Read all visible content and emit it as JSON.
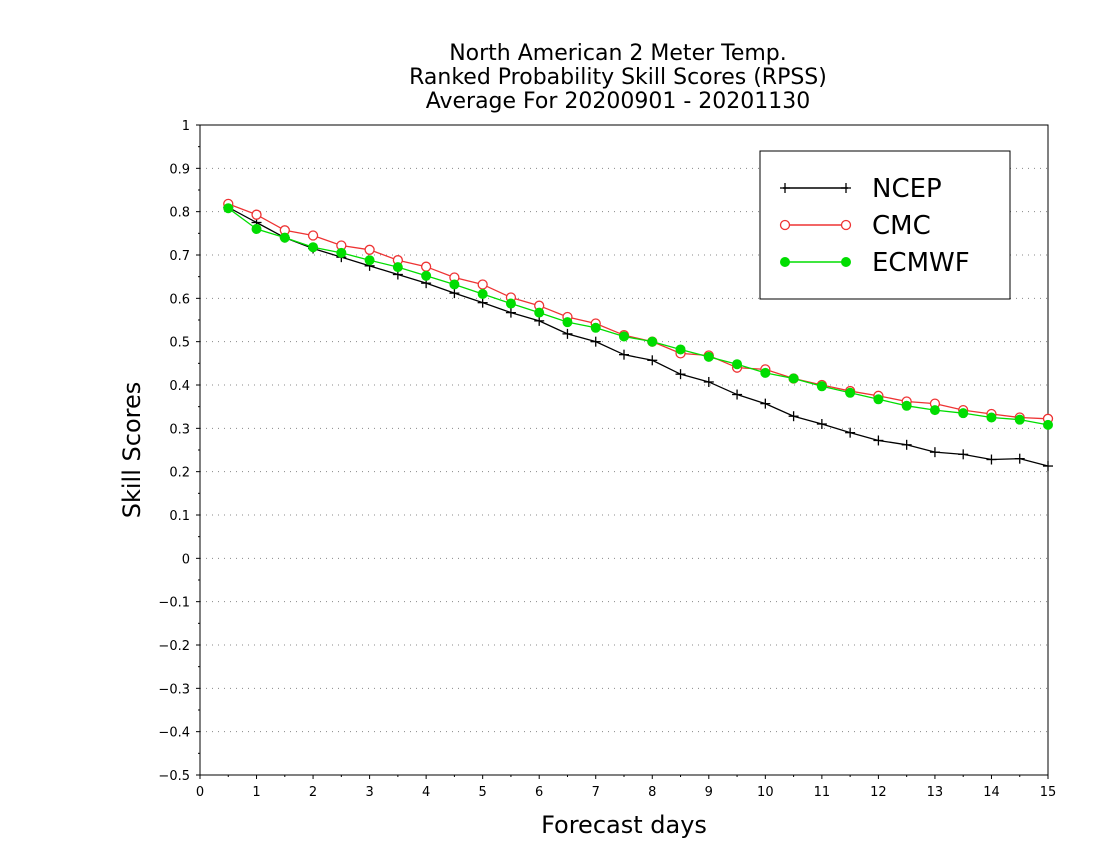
{
  "chart_data": {
    "type": "line",
    "title_lines": [
      "North American 2 Meter Temp.",
      "Ranked Probability Skill Scores (RPSS)",
      "Average For 20200901 - 20201130"
    ],
    "xlabel": "Forecast days",
    "ylabel": "Skill Scores",
    "xlim": [
      0,
      15
    ],
    "ylim": [
      -0.5,
      1
    ],
    "xticks": [
      0,
      1,
      2,
      3,
      4,
      5,
      6,
      7,
      8,
      9,
      10,
      11,
      12,
      13,
      14,
      15
    ],
    "yticks": [
      -0.5,
      -0.4,
      -0.3,
      -0.2,
      -0.1,
      0,
      0.1,
      0.2,
      0.3,
      0.4,
      0.5,
      0.6,
      0.7,
      0.8,
      0.9,
      1
    ],
    "ytick_labels": [
      "−0.5",
      "−0.4",
      "−0.3",
      "−0.2",
      "−0.1",
      "0",
      "0.1",
      "0.2",
      "0.3",
      "0.4",
      "0.5",
      "0.6",
      "0.7",
      "0.8",
      "0.9",
      "1"
    ],
    "grid": "horizontal dotted",
    "legend_position": "top-right",
    "x": [
      0.5,
      1,
      1.5,
      2,
      2.5,
      3,
      3.5,
      4,
      4.5,
      5,
      5.5,
      6,
      6.5,
      7,
      7.5,
      8,
      8.5,
      9,
      9.5,
      10,
      10.5,
      11,
      11.5,
      12,
      12.5,
      13,
      13.5,
      14,
      14.5,
      15
    ],
    "series": [
      {
        "name": "NCEP",
        "color": "#000000",
        "marker": "plus",
        "values": [
          0.81,
          0.775,
          0.74,
          0.715,
          0.695,
          0.675,
          0.655,
          0.635,
          0.612,
          0.59,
          0.567,
          0.548,
          0.518,
          0.5,
          0.47,
          0.457,
          0.425,
          0.407,
          0.378,
          0.357,
          0.328,
          0.31,
          0.29,
          0.272,
          0.262,
          0.245,
          0.24,
          0.228,
          0.23,
          0.213
        ]
      },
      {
        "name": "CMC",
        "color": "#ee3333",
        "marker": "open-circle",
        "values": [
          0.818,
          0.793,
          0.757,
          0.745,
          0.722,
          0.712,
          0.688,
          0.673,
          0.648,
          0.632,
          0.602,
          0.583,
          0.557,
          0.542,
          0.515,
          0.5,
          0.473,
          0.468,
          0.44,
          0.436,
          0.415,
          0.4,
          0.386,
          0.375,
          0.362,
          0.357,
          0.342,
          0.333,
          0.325,
          0.322
        ]
      },
      {
        "name": "ECMWF",
        "color": "#00dd00",
        "marker": "filled-circle",
        "values": [
          0.808,
          0.76,
          0.74,
          0.718,
          0.705,
          0.688,
          0.672,
          0.652,
          0.632,
          0.61,
          0.588,
          0.567,
          0.545,
          0.532,
          0.512,
          0.5,
          0.482,
          0.465,
          0.448,
          0.428,
          0.415,
          0.397,
          0.382,
          0.367,
          0.352,
          0.342,
          0.335,
          0.325,
          0.32,
          0.308
        ]
      }
    ]
  }
}
